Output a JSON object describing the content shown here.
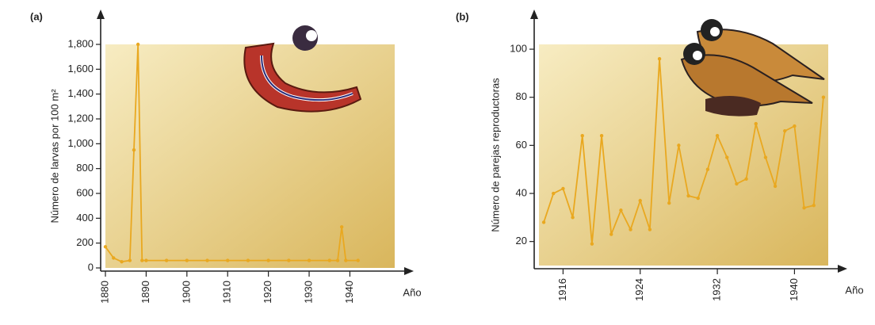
{
  "chart_data": [
    {
      "type": "line",
      "panel": "(a)",
      "y_label": "Número de larvas por 100 m²",
      "x_label": "Año",
      "color": "#e9a820",
      "x": [
        1880,
        1882,
        1884,
        1886,
        1887,
        1888,
        1889,
        1890,
        1895,
        1900,
        1905,
        1910,
        1915,
        1920,
        1925,
        1930,
        1935,
        1937,
        1938,
        1939,
        1942
      ],
      "values": [
        170,
        80,
        50,
        60,
        950,
        1800,
        60,
        60,
        60,
        60,
        60,
        60,
        60,
        60,
        60,
        60,
        60,
        60,
        330,
        60,
        60
      ],
      "xlim": [
        1880,
        1951
      ],
      "ylim": [
        0,
        1800
      ],
      "xticks": [
        1880,
        1890,
        1900,
        1910,
        1920,
        1930,
        1940
      ],
      "yticks": [
        0,
        200,
        400,
        600,
        800,
        {
          "value": 1000,
          "label": "1,000"
        },
        {
          "value": 1200,
          "label": "1,200"
        },
        {
          "value": 1400,
          "label": "1,400"
        },
        {
          "value": 1600,
          "label": "1,600"
        },
        {
          "value": 1800,
          "label": "1,800"
        }
      ]
    },
    {
      "type": "line",
      "panel": "(b)",
      "y_label": "Número de parejas reproductoras",
      "x_label": "Año",
      "color": "#e9a820",
      "x": [
        1914,
        1915,
        1916,
        1917,
        1918,
        1919,
        1920,
        1921,
        1922,
        1923,
        1924,
        1925,
        1926,
        1927,
        1928,
        1929,
        1930,
        1931,
        1932,
        1933,
        1934,
        1935,
        1936,
        1937,
        1938,
        1939,
        1940,
        1941,
        1942,
        1943
      ],
      "values": [
        28,
        40,
        42,
        30,
        64,
        19,
        64,
        23,
        33,
        25,
        37,
        25,
        96,
        36,
        60,
        39,
        38,
        50,
        64,
        55,
        44,
        46,
        69,
        55,
        43,
        66,
        68,
        34,
        35,
        80
      ],
      "xlim": [
        1913.5,
        1943.5
      ],
      "ylim": [
        10,
        102
      ],
      "xticks": [
        1916,
        1924,
        1932,
        1940
      ],
      "yticks": [
        20,
        40,
        60,
        80,
        100
      ]
    }
  ]
}
